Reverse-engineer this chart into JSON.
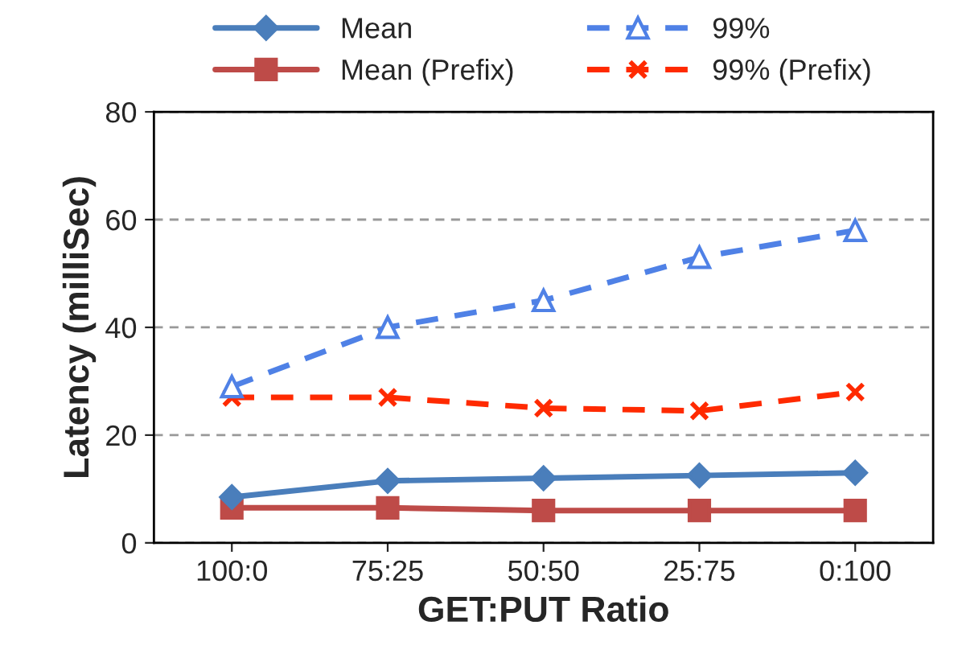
{
  "chart_data": {
    "type": "line",
    "xlabel": "GET:PUT Ratio",
    "ylabel": "Latency (milliSec)",
    "categories": [
      "100:0",
      "75:25",
      "50:50",
      "25:75",
      "0:100"
    ],
    "series": [
      {
        "name": "Mean",
        "color": "#4a7ebb",
        "values": [
          8.5,
          11.5,
          12,
          12.5,
          13
        ],
        "marker": "diamond",
        "line_style": "solid"
      },
      {
        "name": "Mean (Prefix)",
        "color": "#be4b48",
        "values": [
          6.5,
          6.5,
          6,
          6,
          6
        ],
        "marker": "square",
        "line_style": "solid"
      },
      {
        "name": "99%",
        "color": "#4f81e6",
        "values": [
          29,
          40,
          45,
          53,
          58
        ],
        "marker": "triangle",
        "line_style": "dashed"
      },
      {
        "name": "99% (Prefix)",
        "color": "#ff2a00",
        "values": [
          27,
          27,
          25,
          24.5,
          28
        ],
        "marker": "cross",
        "line_style": "dashed"
      }
    ],
    "ylim": [
      0,
      80
    ],
    "yticks": [
      0,
      20,
      40,
      60,
      80
    ],
    "grid": "y",
    "legend": "top"
  }
}
